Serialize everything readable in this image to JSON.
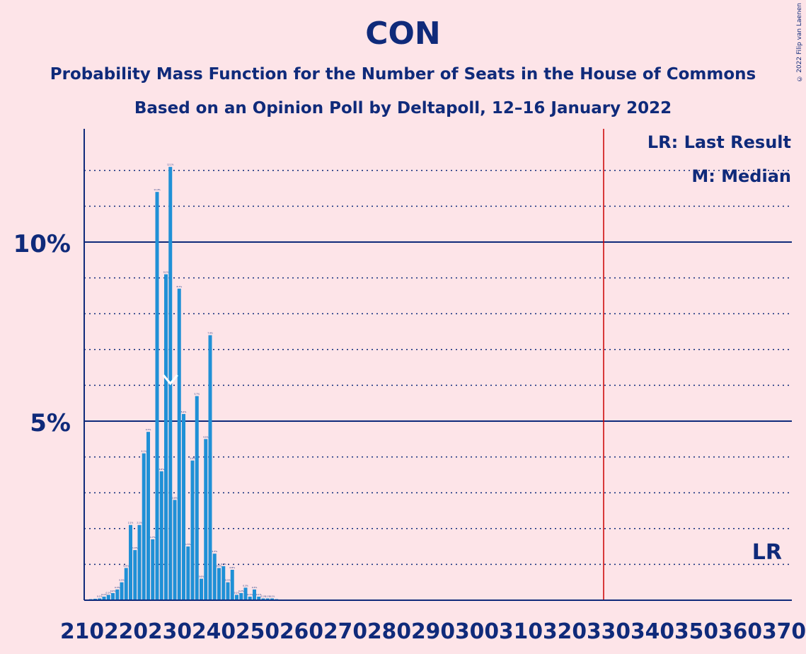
{
  "header": {
    "title": "CON",
    "subtitle1": "Probability Mass Function for the Number of Seats in the House of Commons",
    "subtitle2": "Based on an Opinion Poll by Deltapoll, 12–16 January 2022",
    "credit": "© 2022 Filip van Laenen"
  },
  "chart_data": {
    "type": "bar",
    "title": "CON",
    "xlim": [
      210,
      370
    ],
    "ylim": [
      0,
      13
    ],
    "x_tick_labels": [
      "210",
      "220",
      "230",
      "240",
      "250",
      "260",
      "270",
      "280",
      "290",
      "300",
      "310",
      "320",
      "330",
      "340",
      "350",
      "360",
      "370"
    ],
    "y_tick_labels": [
      {
        "value": 10,
        "label": "10%"
      },
      {
        "value": 5,
        "label": "5%"
      }
    ],
    "x": [
      210,
      211,
      212,
      213,
      214,
      215,
      216,
      217,
      218,
      219,
      220,
      221,
      222,
      223,
      224,
      225,
      226,
      227,
      228,
      229,
      230,
      231,
      232,
      233,
      234,
      235,
      236,
      237,
      238,
      239,
      240,
      241,
      242,
      243,
      244,
      245,
      246,
      247,
      248,
      249,
      250,
      251,
      252,
      253,
      254,
      255,
      256,
      257,
      258,
      259,
      260
    ],
    "values": [
      0.02,
      0.03,
      0.04,
      0.05,
      0.1,
      0.15,
      0.2,
      0.3,
      0.5,
      0.9,
      2.1,
      1.4,
      2.1,
      4.1,
      4.7,
      1.7,
      11.4,
      3.6,
      9.1,
      12.1,
      2.8,
      8.7,
      5.2,
      1.5,
      3.9,
      5.7,
      0.6,
      4.5,
      7.4,
      1.3,
      0.9,
      0.95,
      0.5,
      0.85,
      0.15,
      0.2,
      0.35,
      0.1,
      0.3,
      0.1,
      0.05,
      0.05,
      0.05,
      0.03,
      0.02,
      0.02,
      0.01,
      0.01,
      0.01,
      0.01,
      0.01
    ],
    "median_seat": 229,
    "last_result_seat": 326,
    "legend": [
      "LR: Last Result",
      "M: Median"
    ],
    "lr_marker_label": "LR",
    "median_marker_label": "M",
    "colors": {
      "bar": "#1f90d6",
      "background": "#fde4e8",
      "axis": "#0f2a7a",
      "last_result_line": "#cc0000"
    }
  }
}
